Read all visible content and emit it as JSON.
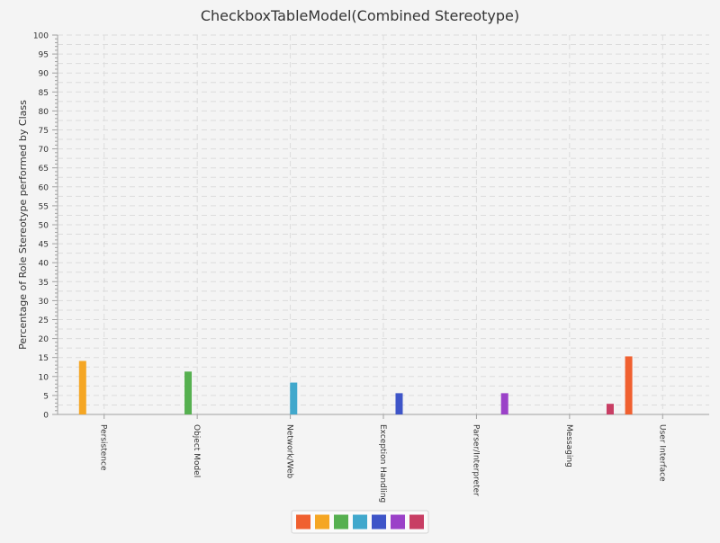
{
  "chart_data": {
    "type": "bar",
    "title": "CheckboxTableModel(Combined Stereotype)",
    "xlabel": "",
    "ylabel": "Percentage of Role Stereotype performed by Class",
    "ylim": [
      0,
      100
    ],
    "y_ticks": [
      0,
      5,
      10,
      15,
      20,
      25,
      30,
      35,
      40,
      45,
      50,
      55,
      60,
      65,
      70,
      75,
      80,
      85,
      90,
      95,
      100
    ],
    "grid": true,
    "legend_position": "bottom",
    "categories": [
      "Persistence",
      "Object Model",
      "Network/Web",
      "Exception Handling",
      "Parser/Interpreter",
      "Messaging",
      "User Interface"
    ],
    "series": [
      {
        "color": "#f06030",
        "values": [
          0,
          0,
          0,
          0,
          0,
          0,
          15.3
        ]
      },
      {
        "color": "#f5a623",
        "values": [
          14.1,
          0,
          0,
          0,
          0,
          0,
          0
        ]
      },
      {
        "color": "#56b050",
        "values": [
          0,
          11.3,
          0,
          0,
          0,
          0,
          0
        ]
      },
      {
        "color": "#41a8cc",
        "values": [
          0,
          0,
          8.4,
          0,
          0,
          0,
          0
        ]
      },
      {
        "color": "#3e55c8",
        "values": [
          0,
          0,
          0,
          5.6,
          0,
          0,
          0
        ]
      },
      {
        "color": "#9b41c8",
        "values": [
          0,
          0,
          0,
          0,
          5.6,
          0,
          0
        ]
      },
      {
        "color": "#c83e64",
        "values": [
          0,
          0,
          0,
          0,
          0,
          2.8,
          0
        ]
      }
    ]
  }
}
